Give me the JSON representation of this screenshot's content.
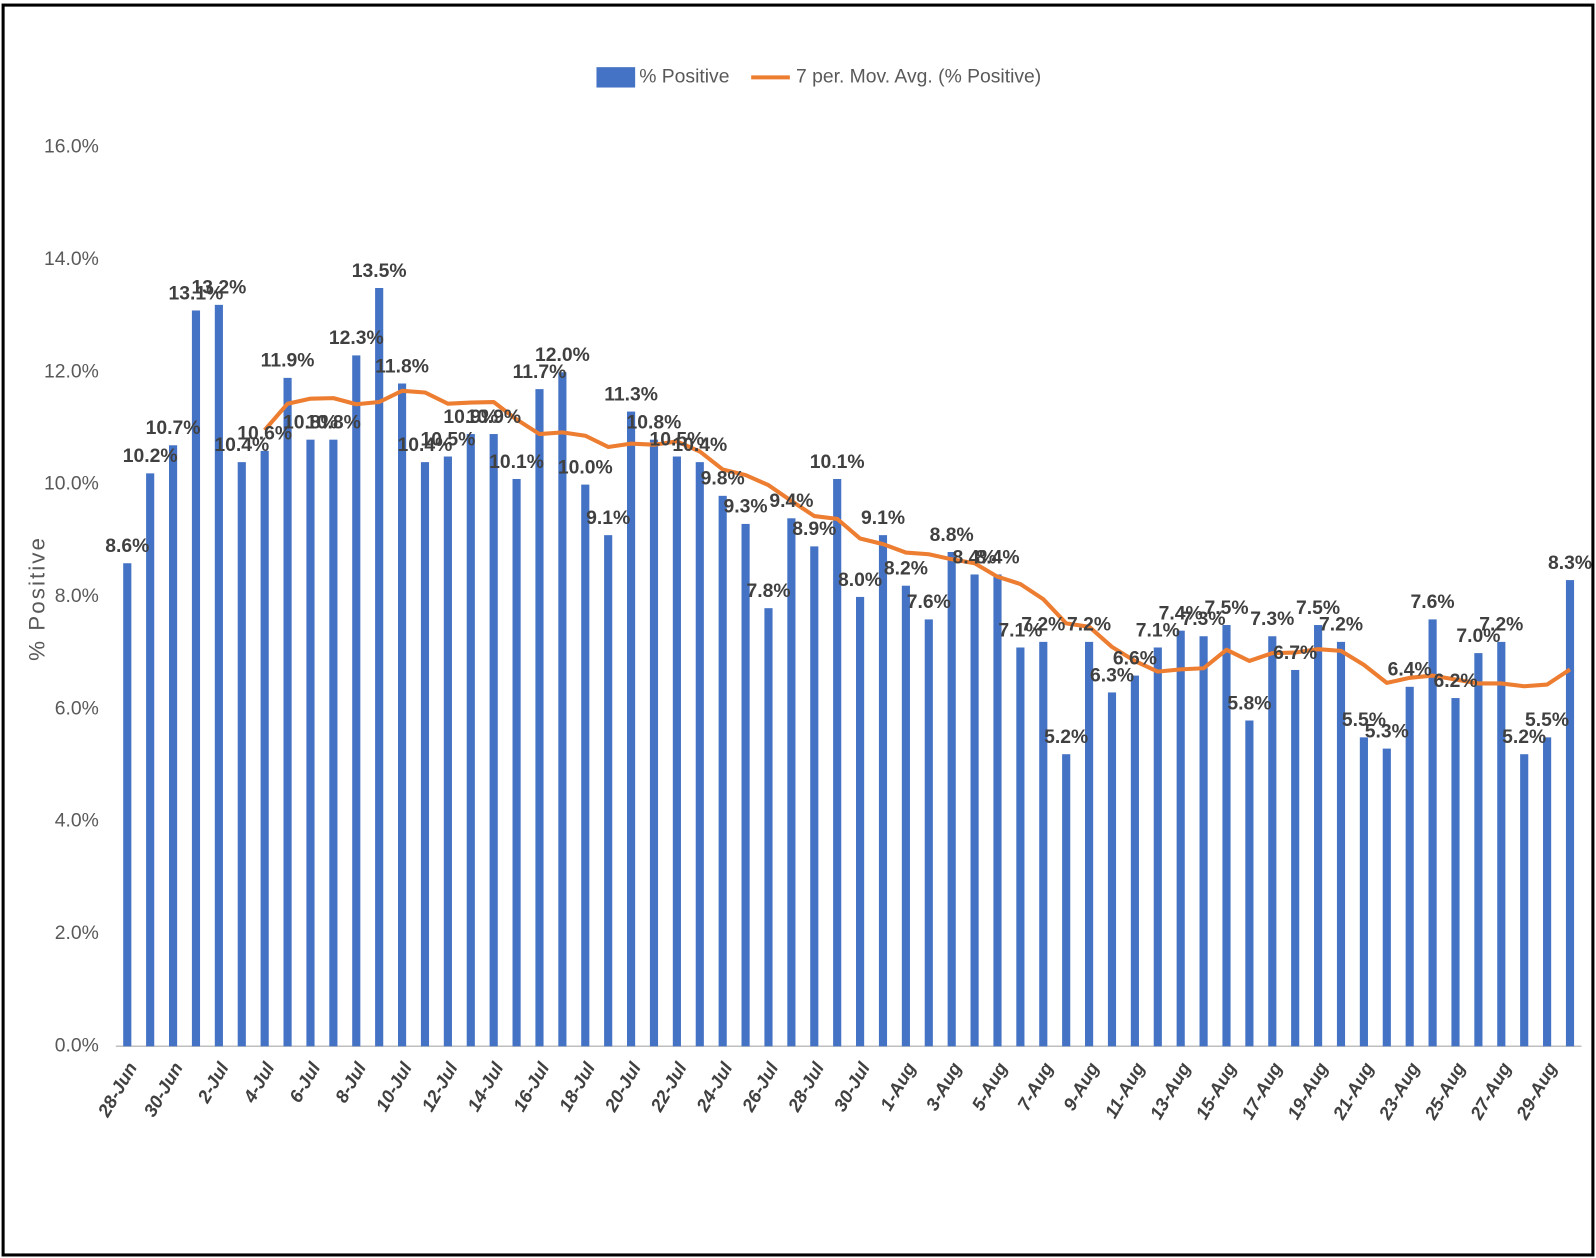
{
  "chart_data": {
    "type": "bar",
    "categories": [
      "28-Jun",
      null,
      "30-Jun",
      null,
      "2-Jul",
      null,
      "4-Jul",
      null,
      "6-Jul",
      null,
      "8-Jul",
      null,
      "10-Jul",
      null,
      "12-Jul",
      null,
      "14-Jul",
      null,
      "16-Jul",
      null,
      "18-Jul",
      null,
      "20-Jul",
      null,
      "22-Jul",
      null,
      "24-Jul",
      null,
      "26-Jul",
      null,
      "28-Jul",
      null,
      "30-Jul",
      null,
      "1-Aug",
      null,
      "3-Aug",
      null,
      "5-Aug",
      null,
      "7-Aug",
      null,
      "9-Aug",
      null,
      "11-Aug",
      null,
      "13-Aug",
      null,
      "15-Aug",
      null,
      "17-Aug",
      null,
      "19-Aug",
      null,
      "21-Aug",
      null,
      "23-Aug",
      null,
      "25-Aug",
      null,
      "27-Aug",
      null,
      "29-Aug",
      null
    ],
    "series": [
      {
        "name": "% Positive",
        "type": "bar",
        "color": "#4472c4",
        "values": [
          8.6,
          10.2,
          10.7,
          13.1,
          13.2,
          10.4,
          10.6,
          11.9,
          10.8,
          10.8,
          12.3,
          13.5,
          11.8,
          10.4,
          10.5,
          10.9,
          10.9,
          10.1,
          11.7,
          12.0,
          10.0,
          9.1,
          11.3,
          10.8,
          10.5,
          10.4,
          9.8,
          9.3,
          7.8,
          9.4,
          8.9,
          10.1,
          8.0,
          9.1,
          8.2,
          7.6,
          8.8,
          8.4,
          8.4,
          7.1,
          7.2,
          5.2,
          7.2,
          6.3,
          6.6,
          7.1,
          7.4,
          7.3,
          7.5,
          5.8,
          7.3,
          6.7,
          7.5,
          7.2,
          5.5,
          5.3,
          6.4,
          7.6,
          6.2,
          7.0,
          7.2,
          5.2,
          5.5,
          8.3
        ],
        "value_labels": [
          "8.6%",
          "10.2%",
          "10.7%",
          "13.1%",
          "13.2%",
          "10.4%",
          "10.6%",
          "11.9%",
          "10.8%",
          "10.8%",
          "12.3%",
          "13.5%",
          "11.8%",
          "10.4%",
          "10.5%",
          "10.9%",
          "10.9%",
          "10.1%",
          "11.7%",
          "12.0%",
          "10.0%",
          "9.1%",
          "11.3%",
          "10.8%",
          "10.5%",
          "10.4%",
          "9.8%",
          "9.3%",
          "7.8%",
          "9.4%",
          "8.9%",
          "10.1%",
          "8.0%",
          "9.1%",
          "8.2%",
          "7.6%",
          "8.8%",
          "8.4%",
          "8.4%",
          "7.1%",
          "7.2%",
          "5.2%",
          "7.2%",
          "6.3%",
          "6.6%",
          "7.1%",
          "7.4%",
          "7.3%",
          "7.5%",
          "5.8%",
          "7.3%",
          "6.7%",
          "7.5%",
          "7.2%",
          "5.5%",
          "5.3%",
          "6.4%",
          "7.6%",
          "6.2%",
          "7.0%",
          "7.2%",
          "5.2%",
          "5.5%",
          "8.3%"
        ]
      },
      {
        "name": "7 per. Mov. Avg. (% Positive)",
        "type": "line",
        "color": "#ed7d31",
        "values": [
          null,
          null,
          null,
          null,
          null,
          null,
          10.97,
          11.44,
          11.53,
          11.54,
          11.43,
          11.47,
          11.67,
          11.64,
          11.44,
          11.46,
          11.47,
          11.16,
          10.9,
          10.93,
          10.87,
          10.67,
          10.73,
          10.71,
          10.77,
          10.59,
          10.27,
          10.17,
          9.99,
          9.71,
          9.44,
          9.39,
          9.04,
          8.94,
          8.79,
          8.76,
          8.67,
          8.6,
          8.36,
          8.23,
          7.96,
          7.53,
          7.47,
          7.11,
          6.86,
          6.67,
          6.71,
          6.73,
          7.06,
          6.86,
          7.0,
          7.01,
          7.07,
          7.04,
          6.79,
          6.47,
          6.56,
          6.6,
          6.53,
          6.46,
          6.46,
          6.41,
          6.44,
          6.71
        ]
      }
    ],
    "ylabel": "% Positive",
    "ylim": [
      0,
      16
    ],
    "yticks": [
      {
        "value": 0,
        "label": "0.0%"
      },
      {
        "value": 2,
        "label": "2.0%"
      },
      {
        "value": 4,
        "label": "4.0%"
      },
      {
        "value": 6,
        "label": "6.0%"
      },
      {
        "value": 8,
        "label": "8.0%"
      },
      {
        "value": 10,
        "label": "10.0%"
      },
      {
        "value": 12,
        "label": "12.0%"
      },
      {
        "value": 14,
        "label": "14.0%"
      },
      {
        "value": 16,
        "label": "16.0%"
      }
    ],
    "grid": false,
    "legend": "top"
  }
}
